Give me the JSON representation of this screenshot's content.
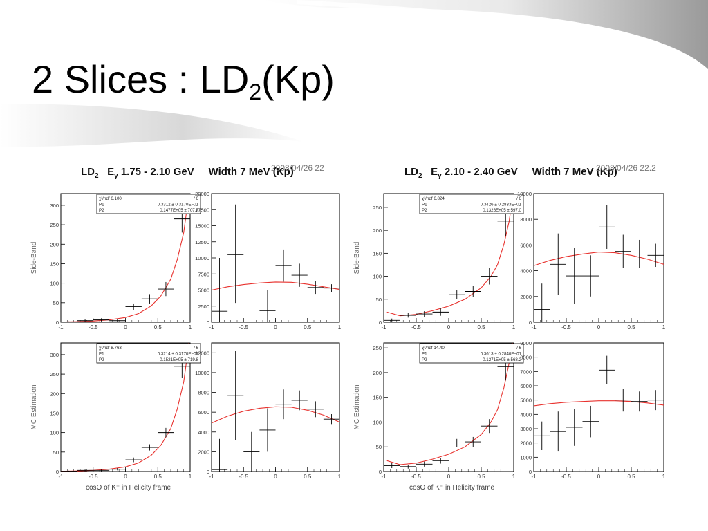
{
  "slide": {
    "title_main": "2 Slices : LD",
    "title_sub": "2",
    "title_tail": "(Kp)"
  },
  "panels": [
    {
      "title": {
        "ld": "LD",
        "ld_sub": "2",
        "e": "E",
        "e_sub": "γ",
        "range": " 1.75 - 2.10 GeV",
        "width": "Width 7 MeV (Kp)"
      },
      "date": "2008/04/26   22",
      "xtitle": "cosΘ of K⁻ in Helicity frame"
    },
    {
      "title": {
        "ld": "LD",
        "ld_sub": "2",
        "e": "E",
        "e_sub": "γ",
        "range": " 2.10 - 2.40 GeV",
        "width": "Width 7 MeV (Kp)"
      },
      "date": "2008/04/26   22.2",
      "xtitle": "cosΘ of K⁻ in Helicity frame"
    }
  ],
  "colors": {
    "fit": "#e8322e",
    "data": "#000000",
    "axis": "#000000",
    "label": "#666666"
  },
  "chart_data": [
    {
      "id": "A1",
      "type": "scatter",
      "ylabel": "Side-Band",
      "xlim": [
        -1,
        1
      ],
      "ylim": [
        0,
        330
      ],
      "xticks": [
        -1,
        -0.5,
        0,
        0.5,
        1
      ],
      "xtick_labels": [
        "-1",
        "-0.5",
        "0",
        "0.5",
        "1"
      ],
      "yticks": [
        0,
        50,
        100,
        150,
        200,
        250,
        300
      ],
      "ytick_labels": [
        "0",
        "50",
        "100",
        "150",
        "200",
        "250",
        "300"
      ],
      "points": [
        [
          -0.875,
          1,
          1,
          1
        ],
        [
          -0.625,
          4,
          3,
          3
        ],
        [
          -0.375,
          6,
          4,
          4
        ],
        [
          -0.125,
          4,
          4,
          4
        ],
        [
          0.125,
          40,
          8,
          8
        ],
        [
          0.375,
          60,
          12,
          12
        ],
        [
          0.625,
          85,
          18,
          18
        ],
        [
          0.875,
          265,
          35,
          35
        ]
      ],
      "fit": [
        [
          -1,
          0.5
        ],
        [
          -0.75,
          1.5
        ],
        [
          -0.5,
          3
        ],
        [
          -0.25,
          6
        ],
        [
          0,
          12
        ],
        [
          0.2,
          22
        ],
        [
          0.4,
          42
        ],
        [
          0.55,
          68
        ],
        [
          0.7,
          110
        ],
        [
          0.8,
          160
        ],
        [
          0.9,
          230
        ],
        [
          0.95,
          290
        ],
        [
          0.98,
          330
        ]
      ],
      "stats": [
        [
          "χ²/ndf 6.100",
          "/  6"
        ],
        [
          "P1",
          "0.3312 ±  0.3170E−01"
        ],
        [
          "P2",
          "0.1477E+05 ±     707.7"
        ]
      ]
    },
    {
      "id": "A2",
      "type": "scatter",
      "ylabel": "",
      "xlim": [
        -1,
        1
      ],
      "ylim": [
        0,
        20000
      ],
      "xticks": [
        -1,
        -0.5,
        0,
        0.5,
        1
      ],
      "xtick_labels": [
        "-1",
        "-0.5",
        "0",
        "0.5",
        "1"
      ],
      "yticks": [
        0,
        2500,
        5000,
        7500,
        10000,
        12500,
        15000,
        17500,
        20000
      ],
      "ytick_labels": [
        "0",
        "2500",
        "5000",
        "7500",
        "10000",
        "12500",
        "15000",
        "17500",
        "20000"
      ],
      "points": [
        [
          -0.875,
          1700,
          8300,
          1700
        ],
        [
          -0.625,
          10500,
          7800,
          7500
        ],
        [
          -0.125,
          1800,
          3200,
          1800
        ],
        [
          0.125,
          8800,
          2500,
          2500
        ],
        [
          0.375,
          7300,
          1800,
          1800
        ],
        [
          0.625,
          5400,
          1000,
          1000
        ],
        [
          0.875,
          5300,
          600,
          600
        ]
      ],
      "fit": [
        [
          -1,
          5000
        ],
        [
          -0.75,
          5500
        ],
        [
          -0.5,
          5850
        ],
        [
          -0.25,
          6100
        ],
        [
          0,
          6250
        ],
        [
          0.25,
          6200
        ],
        [
          0.5,
          5900
        ],
        [
          0.75,
          5500
        ],
        [
          1,
          5100
        ]
      ],
      "stats": []
    },
    {
      "id": "A3",
      "type": "scatter",
      "ylabel": "MC Estimation",
      "xlim": [
        -1,
        1
      ],
      "ylim": [
        0,
        330
      ],
      "xticks": [
        -1,
        -0.5,
        0,
        0.5,
        1
      ],
      "xtick_labels": [
        "-1",
        "-0.5",
        "0",
        "0.5",
        "1"
      ],
      "yticks": [
        0,
        50,
        100,
        150,
        200,
        250,
        300
      ],
      "ytick_labels": [
        "0",
        "50",
        "100",
        "150",
        "200",
        "250",
        "300"
      ],
      "points": [
        [
          -0.875,
          1,
          1,
          1
        ],
        [
          -0.625,
          3,
          2,
          2
        ],
        [
          -0.375,
          3,
          2,
          2
        ],
        [
          -0.125,
          6,
          3,
          3
        ],
        [
          0.125,
          30,
          6,
          6
        ],
        [
          0.375,
          62,
          8,
          8
        ],
        [
          0.625,
          100,
          12,
          12
        ],
        [
          0.875,
          270,
          30,
          30
        ]
      ],
      "fit": [
        [
          -1,
          0.5
        ],
        [
          -0.75,
          1.5
        ],
        [
          -0.5,
          3
        ],
        [
          -0.25,
          6
        ],
        [
          0,
          12
        ],
        [
          0.2,
          22
        ],
        [
          0.4,
          42
        ],
        [
          0.55,
          68
        ],
        [
          0.7,
          110
        ],
        [
          0.8,
          160
        ],
        [
          0.9,
          230
        ],
        [
          0.95,
          290
        ],
        [
          0.98,
          330
        ]
      ],
      "stats": [
        [
          "χ²/ndf 8.763",
          "/  6"
        ],
        [
          "P1",
          "0.3214 ±  0.3170E−01"
        ],
        [
          "P2",
          "0.1521E+05 ±     719.8"
        ]
      ]
    },
    {
      "id": "A4",
      "type": "scatter",
      "ylabel": "",
      "xlim": [
        -1,
        1
      ],
      "ylim": [
        0,
        13000
      ],
      "xticks": [
        -1,
        -0.5,
        0,
        0.5,
        1
      ],
      "xtick_labels": [
        "-1",
        "-0.5",
        "0",
        "0.5",
        "1"
      ],
      "yticks": [
        0,
        2000,
        4000,
        6000,
        8000,
        10000,
        12000
      ],
      "ytick_labels": [
        "0",
        "2000",
        "4000",
        "6000",
        "8000",
        "10000",
        "12000"
      ],
      "points": [
        [
          -0.875,
          200,
          3100,
          200
        ],
        [
          -0.625,
          7700,
          4500,
          4500
        ],
        [
          -0.375,
          2000,
          2000,
          2000
        ],
        [
          -0.125,
          4200,
          2200,
          2200
        ],
        [
          0.125,
          6800,
          1500,
          1500
        ],
        [
          0.375,
          7200,
          1000,
          1000
        ],
        [
          0.625,
          6300,
          800,
          800
        ],
        [
          0.875,
          5300,
          500,
          500
        ]
      ],
      "fit": [
        [
          -1,
          4900
        ],
        [
          -0.75,
          5600
        ],
        [
          -0.5,
          6100
        ],
        [
          -0.25,
          6400
        ],
        [
          0,
          6550
        ],
        [
          0.25,
          6500
        ],
        [
          0.5,
          6200
        ],
        [
          0.75,
          5700
        ],
        [
          1,
          5000
        ]
      ],
      "stats": []
    },
    {
      "id": "B1",
      "type": "scatter",
      "ylabel": "Side-Band",
      "xlim": [
        -1,
        1
      ],
      "ylim": [
        0,
        280
      ],
      "xticks": [
        -1,
        -0.5,
        0,
        0.5,
        1
      ],
      "xtick_labels": [
        "-1",
        "-0.5",
        "0",
        "0.5",
        "1"
      ],
      "yticks": [
        0,
        50,
        100,
        150,
        200,
        250
      ],
      "ytick_labels": [
        "0",
        "50",
        "100",
        "150",
        "200",
        "250"
      ],
      "points": [
        [
          -0.875,
          4,
          4,
          4
        ],
        [
          -0.625,
          15,
          5,
          5
        ],
        [
          -0.375,
          18,
          6,
          6
        ],
        [
          -0.125,
          22,
          8,
          8
        ],
        [
          0.125,
          60,
          10,
          10
        ],
        [
          0.375,
          67,
          12,
          12
        ],
        [
          0.625,
          100,
          18,
          18
        ],
        [
          0.875,
          220,
          32,
          32
        ]
      ],
      "fit": [
        [
          -0.95,
          22
        ],
        [
          -0.75,
          14
        ],
        [
          -0.5,
          17
        ],
        [
          -0.25,
          25
        ],
        [
          0,
          35
        ],
        [
          0.25,
          50
        ],
        [
          0.5,
          75
        ],
        [
          0.65,
          100
        ],
        [
          0.75,
          125
        ],
        [
          0.85,
          170
        ],
        [
          0.93,
          220
        ],
        [
          0.98,
          270
        ]
      ],
      "stats": [
        [
          "χ²/ndf 6.824",
          "/  6"
        ],
        [
          "P1",
          "0.3426 ±  0.2833E−01"
        ],
        [
          "P2",
          "0.1326E+05 ±     597.0"
        ]
      ]
    },
    {
      "id": "B2",
      "type": "scatter",
      "ylabel": "",
      "xlim": [
        -1,
        1
      ],
      "ylim": [
        0,
        10000
      ],
      "xticks": [
        -1,
        -0.5,
        0,
        0.5,
        1
      ],
      "xtick_labels": [
        "-1",
        "-0.5",
        "0",
        "0.5",
        "1"
      ],
      "yticks": [
        0,
        2000,
        4000,
        6000,
        8000,
        10000
      ],
      "ytick_labels": [
        "0",
        "2000",
        "4000",
        "6000",
        "8000",
        "10000"
      ],
      "points": [
        [
          -0.875,
          1000,
          2000,
          1000
        ],
        [
          -0.625,
          4500,
          2400,
          2400
        ],
        [
          -0.375,
          3600,
          2200,
          2200
        ],
        [
          -0.125,
          3600,
          1600,
          1600
        ],
        [
          0.125,
          7400,
          1700,
          1700
        ],
        [
          0.375,
          5500,
          1300,
          1300
        ],
        [
          0.625,
          5300,
          1100,
          1100
        ],
        [
          0.875,
          5200,
          900,
          900
        ]
      ],
      "fit": [
        [
          -1,
          4400
        ],
        [
          -0.75,
          4800
        ],
        [
          -0.5,
          5100
        ],
        [
          -0.25,
          5300
        ],
        [
          0,
          5450
        ],
        [
          0.25,
          5400
        ],
        [
          0.5,
          5200
        ],
        [
          0.75,
          4900
        ],
        [
          1,
          4500
        ]
      ],
      "stats": []
    },
    {
      "id": "B3",
      "type": "scatter",
      "ylabel": "MC Estimation",
      "xlim": [
        -1,
        1
      ],
      "ylim": [
        0,
        260
      ],
      "xticks": [
        -1,
        -0.5,
        0,
        0.5,
        1
      ],
      "xtick_labels": [
        "-1",
        "-0.5",
        "0",
        "0.5",
        "1"
      ],
      "yticks": [
        0,
        50,
        100,
        150,
        200,
        250
      ],
      "ytick_labels": [
        "0",
        "50",
        "100",
        "150",
        "200",
        "250"
      ],
      "points": [
        [
          -0.875,
          12,
          5,
          5
        ],
        [
          -0.625,
          10,
          4,
          4
        ],
        [
          -0.375,
          15,
          5,
          5
        ],
        [
          -0.125,
          22,
          6,
          6
        ],
        [
          0.125,
          58,
          8,
          8
        ],
        [
          0.375,
          60,
          10,
          10
        ],
        [
          0.625,
          92,
          14,
          14
        ],
        [
          0.875,
          212,
          28,
          28
        ]
      ],
      "fit": [
        [
          -0.95,
          22
        ],
        [
          -0.75,
          14
        ],
        [
          -0.5,
          17
        ],
        [
          -0.25,
          25
        ],
        [
          0,
          35
        ],
        [
          0.25,
          50
        ],
        [
          0.5,
          75
        ],
        [
          0.65,
          100
        ],
        [
          0.75,
          125
        ],
        [
          0.85,
          170
        ],
        [
          0.93,
          220
        ],
        [
          0.98,
          260
        ]
      ],
      "stats": [
        [
          "χ²/ndf 14.40",
          "/  6"
        ],
        [
          "P1",
          "0.3613 ±  0.2840E−01"
        ],
        [
          "P2",
          "0.1271E+05 ±     568.2"
        ]
      ]
    },
    {
      "id": "B4",
      "type": "scatter",
      "ylabel": "",
      "xlim": [
        -1,
        1
      ],
      "ylim": [
        0,
        9000
      ],
      "xticks": [
        -1,
        -0.5,
        0,
        0.5,
        1
      ],
      "xtick_labels": [
        "-1",
        "-0.5",
        "0",
        "0.5",
        "1"
      ],
      "yticks": [
        0,
        1000,
        2000,
        3000,
        4000,
        5000,
        6000,
        7000,
        8000,
        9000
      ],
      "ytick_labels": [
        "0",
        "1000",
        "2000",
        "3000",
        "4000",
        "5000",
        "6000",
        "7000",
        "8000",
        "9000"
      ],
      "points": [
        [
          -0.875,
          2500,
          1000,
          1000
        ],
        [
          -0.625,
          2800,
          1400,
          1400
        ],
        [
          -0.375,
          3100,
          1300,
          1300
        ],
        [
          -0.125,
          3500,
          1100,
          1100
        ],
        [
          0.125,
          7100,
          1000,
          1000
        ],
        [
          0.375,
          5000,
          800,
          800
        ],
        [
          0.625,
          4900,
          700,
          700
        ],
        [
          0.875,
          5000,
          700,
          700
        ]
      ],
      "fit": [
        [
          -1,
          4600
        ],
        [
          -0.75,
          4750
        ],
        [
          -0.5,
          4850
        ],
        [
          -0.25,
          4900
        ],
        [
          0,
          4950
        ],
        [
          0.25,
          4950
        ],
        [
          0.5,
          4900
        ],
        [
          0.75,
          4800
        ],
        [
          1,
          4650
        ]
      ],
      "stats": []
    }
  ]
}
